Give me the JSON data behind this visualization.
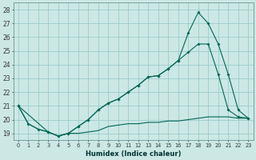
{
  "xlabel": "Humidex (Indice chaleur)",
  "bg_color": "#cce8e4",
  "grid_color": "#99cccc",
  "line_color": "#006655",
  "xlim": [
    -0.5,
    23.5
  ],
  "ylim": [
    18.5,
    28.5
  ],
  "yticks": [
    19,
    20,
    21,
    22,
    23,
    24,
    25,
    26,
    27,
    28
  ],
  "xticks": [
    0,
    1,
    2,
    3,
    4,
    5,
    6,
    7,
    8,
    9,
    10,
    11,
    12,
    13,
    14,
    15,
    16,
    17,
    18,
    19,
    20,
    21,
    22,
    23
  ],
  "series1_x": [
    0,
    1,
    2,
    3,
    4,
    5,
    6,
    7,
    8,
    9,
    10,
    11,
    12,
    13,
    14,
    15,
    16,
    17,
    18,
    19,
    20,
    21,
    22,
    23
  ],
  "series1_y": [
    21.0,
    19.7,
    19.3,
    19.1,
    18.8,
    19.0,
    19.0,
    19.1,
    19.2,
    19.5,
    19.6,
    19.7,
    19.7,
    19.8,
    19.8,
    19.9,
    19.9,
    20.0,
    20.1,
    20.2,
    20.2,
    20.2,
    20.1,
    20.1
  ],
  "series2_x": [
    0,
    1,
    2,
    3,
    4,
    5,
    6,
    7,
    8,
    9,
    10,
    11,
    12,
    13,
    14,
    15,
    16,
    17,
    18,
    19,
    20,
    21,
    22,
    23
  ],
  "series2_y": [
    21.0,
    19.7,
    19.3,
    19.1,
    18.8,
    19.0,
    19.5,
    20.0,
    20.7,
    21.2,
    21.5,
    22.0,
    22.5,
    23.1,
    23.2,
    23.7,
    24.3,
    24.9,
    25.5,
    25.5,
    23.3,
    20.7,
    20.2,
    20.1
  ],
  "series3_x": [
    0,
    3,
    4,
    5,
    6,
    7,
    8,
    9,
    10,
    11,
    12,
    13,
    14,
    15,
    16,
    17,
    18,
    19,
    20,
    21,
    22,
    23
  ],
  "series3_y": [
    21.0,
    19.1,
    18.8,
    19.0,
    19.5,
    20.0,
    20.7,
    21.2,
    21.5,
    22.0,
    22.5,
    23.1,
    23.2,
    23.7,
    24.3,
    26.3,
    27.8,
    27.0,
    25.5,
    23.3,
    20.7,
    20.1
  ]
}
